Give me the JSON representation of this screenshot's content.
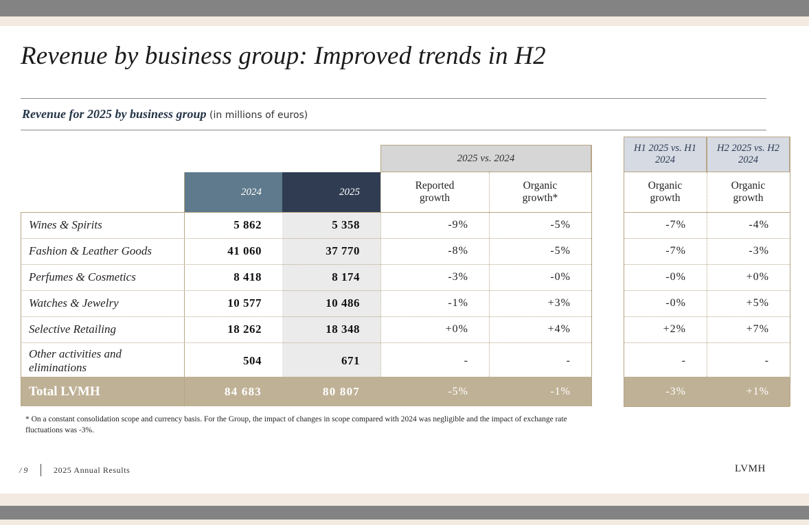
{
  "title": "Revenue by business group: Improved trends in H2",
  "subtitle": {
    "main": "Revenue for 2025 by business group",
    "note": "(in millions of euros)"
  },
  "table": {
    "group_header_left": "2025 vs. 2024",
    "group_header_h1": "H1 2025 vs. H1 2024",
    "group_header_h2": "H2 2025 vs. H2 2024",
    "col_2024": "2024",
    "col_2025": "2025",
    "col_reported": "Reported growth",
    "col_organic": "Organic growth*",
    "col_h1_organic": "Organic growth",
    "col_h2_organic": "Organic growth",
    "rows": [
      {
        "label": "Wines & Spirits",
        "v2024": "5 862",
        "v2025": "5 358",
        "reported": "-9%",
        "organic": "-5%",
        "h1": "-7%",
        "h2": "-4%"
      },
      {
        "label": "Fashion & Leather Goods",
        "v2024": "41 060",
        "v2025": "37 770",
        "reported": "-8%",
        "organic": "-5%",
        "h1": "-7%",
        "h2": "-3%"
      },
      {
        "label": "Perfumes & Cosmetics",
        "v2024": "8 418",
        "v2025": "8 174",
        "reported": "-3%",
        "organic": "-0%",
        "h1": "-0%",
        "h2": "+0%"
      },
      {
        "label": "Watches & Jewelry",
        "v2024": "10 577",
        "v2025": "10 486",
        "reported": "-1%",
        "organic": "+3%",
        "h1": "-0%",
        "h2": "+5%"
      },
      {
        "label": "Selective Retailing",
        "v2024": "18 262",
        "v2025": "18 348",
        "reported": "+0%",
        "organic": "+4%",
        "h1": "+2%",
        "h2": "+7%"
      },
      {
        "label": "Other activities and eliminations",
        "v2024": "504",
        "v2025": "671",
        "reported": "-",
        "organic": "-",
        "h1": "-",
        "h2": "-"
      }
    ],
    "total": {
      "label": "Total LVMH",
      "v2024": "84 683",
      "v2025": "80 807",
      "reported": "-5%",
      "organic": "-1%",
      "h1": "-3%",
      "h2": "+1%"
    }
  },
  "footnote": "* On a constant consolidation scope and currency basis. For the Group, the impact of changes in scope compared with 2024 was negligible and the impact of exchange rate fluctuations was -3%.",
  "footer": {
    "page": "/ 9",
    "doc": "2025 Annual Results",
    "logo": "LVMH"
  }
}
